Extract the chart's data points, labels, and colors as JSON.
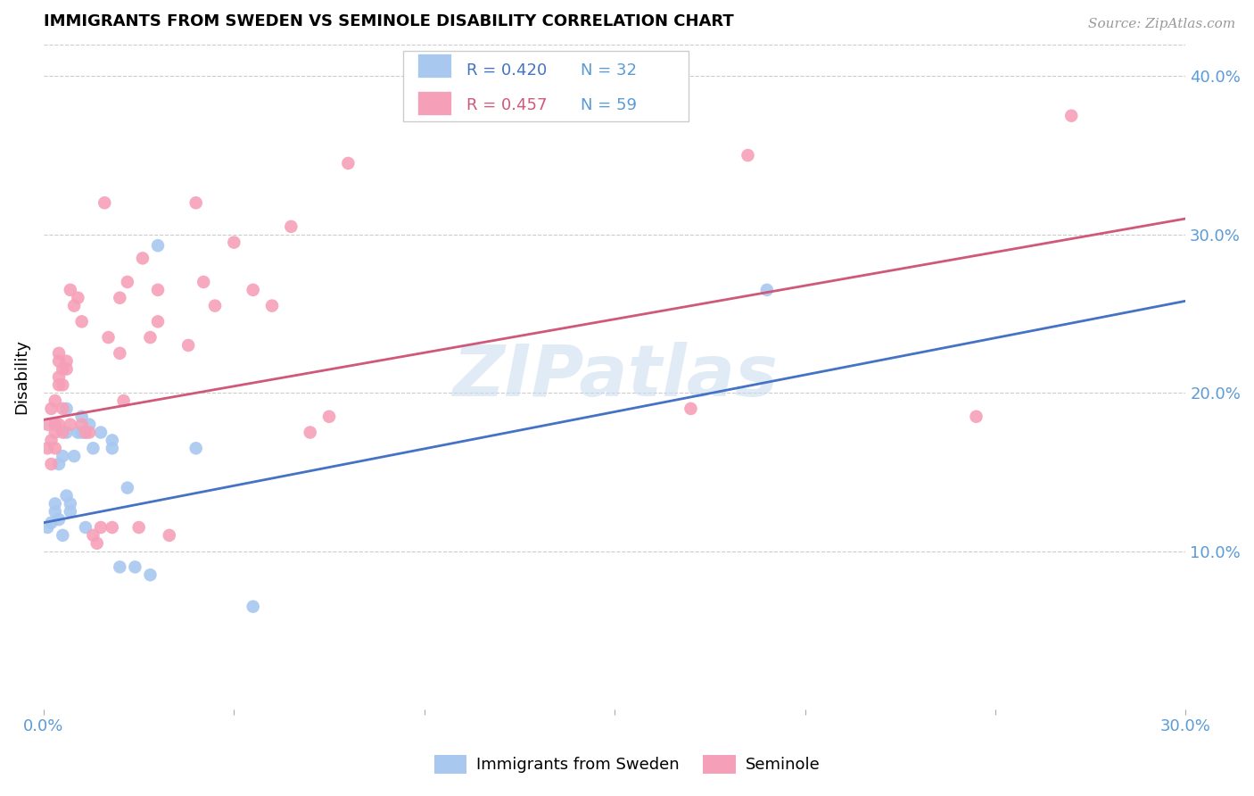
{
  "title": "IMMIGRANTS FROM SWEDEN VS SEMINOLE DISABILITY CORRELATION CHART",
  "source": "Source: ZipAtlas.com",
  "ylabel": "Disability",
  "xlim": [
    0.0,
    0.3
  ],
  "ylim": [
    0.0,
    0.42
  ],
  "ytick_labels": [
    "10.0%",
    "20.0%",
    "30.0%",
    "40.0%"
  ],
  "ytick_values": [
    0.1,
    0.2,
    0.3,
    0.4
  ],
  "xtick_values": [
    0.0,
    0.05,
    0.1,
    0.15,
    0.2,
    0.25,
    0.3
  ],
  "watermark": "ZIPatlas",
  "legend_blue_R": "R = 0.420",
  "legend_blue_N": "N = 32",
  "legend_pink_R": "R = 0.457",
  "legend_pink_N": "N = 59",
  "blue_color": "#A8C8F0",
  "pink_color": "#F5A0B8",
  "blue_line_color": "#4472C4",
  "pink_line_color": "#D05878",
  "tick_label_color": "#5B9BD5",
  "grid_color": "#CCCCCC",
  "blue_scatter": [
    [
      0.001,
      0.115
    ],
    [
      0.002,
      0.118
    ],
    [
      0.003,
      0.125
    ],
    [
      0.003,
      0.13
    ],
    [
      0.004,
      0.12
    ],
    [
      0.004,
      0.155
    ],
    [
      0.005,
      0.11
    ],
    [
      0.005,
      0.16
    ],
    [
      0.006,
      0.135
    ],
    [
      0.006,
      0.19
    ],
    [
      0.006,
      0.175
    ],
    [
      0.007,
      0.125
    ],
    [
      0.007,
      0.13
    ],
    [
      0.008,
      0.16
    ],
    [
      0.009,
      0.175
    ],
    [
      0.01,
      0.175
    ],
    [
      0.01,
      0.185
    ],
    [
      0.011,
      0.115
    ],
    [
      0.011,
      0.175
    ],
    [
      0.012,
      0.18
    ],
    [
      0.013,
      0.165
    ],
    [
      0.015,
      0.175
    ],
    [
      0.018,
      0.165
    ],
    [
      0.018,
      0.17
    ],
    [
      0.02,
      0.09
    ],
    [
      0.022,
      0.14
    ],
    [
      0.024,
      0.09
    ],
    [
      0.028,
      0.085
    ],
    [
      0.03,
      0.293
    ],
    [
      0.04,
      0.165
    ],
    [
      0.055,
      0.065
    ],
    [
      0.19,
      0.265
    ]
  ],
  "pink_scatter": [
    [
      0.001,
      0.165
    ],
    [
      0.001,
      0.18
    ],
    [
      0.002,
      0.17
    ],
    [
      0.002,
      0.155
    ],
    [
      0.002,
      0.19
    ],
    [
      0.003,
      0.175
    ],
    [
      0.003,
      0.18
    ],
    [
      0.003,
      0.195
    ],
    [
      0.003,
      0.165
    ],
    [
      0.004,
      0.205
    ],
    [
      0.004,
      0.21
    ],
    [
      0.004,
      0.18
    ],
    [
      0.004,
      0.22
    ],
    [
      0.004,
      0.225
    ],
    [
      0.005,
      0.175
    ],
    [
      0.005,
      0.19
    ],
    [
      0.005,
      0.205
    ],
    [
      0.005,
      0.215
    ],
    [
      0.006,
      0.215
    ],
    [
      0.006,
      0.22
    ],
    [
      0.007,
      0.18
    ],
    [
      0.007,
      0.265
    ],
    [
      0.008,
      0.255
    ],
    [
      0.009,
      0.26
    ],
    [
      0.01,
      0.18
    ],
    [
      0.01,
      0.245
    ],
    [
      0.011,
      0.175
    ],
    [
      0.012,
      0.175
    ],
    [
      0.013,
      0.11
    ],
    [
      0.014,
      0.105
    ],
    [
      0.015,
      0.115
    ],
    [
      0.016,
      0.32
    ],
    [
      0.017,
      0.235
    ],
    [
      0.018,
      0.115
    ],
    [
      0.02,
      0.225
    ],
    [
      0.02,
      0.26
    ],
    [
      0.021,
      0.195
    ],
    [
      0.022,
      0.27
    ],
    [
      0.025,
      0.115
    ],
    [
      0.026,
      0.285
    ],
    [
      0.028,
      0.235
    ],
    [
      0.03,
      0.245
    ],
    [
      0.03,
      0.265
    ],
    [
      0.033,
      0.11
    ],
    [
      0.038,
      0.23
    ],
    [
      0.04,
      0.32
    ],
    [
      0.042,
      0.27
    ],
    [
      0.045,
      0.255
    ],
    [
      0.05,
      0.295
    ],
    [
      0.055,
      0.265
    ],
    [
      0.06,
      0.255
    ],
    [
      0.065,
      0.305
    ],
    [
      0.07,
      0.175
    ],
    [
      0.075,
      0.185
    ],
    [
      0.08,
      0.345
    ],
    [
      0.17,
      0.19
    ],
    [
      0.185,
      0.35
    ],
    [
      0.245,
      0.185
    ],
    [
      0.27,
      0.375
    ]
  ],
  "blue_line_x": [
    0.0,
    0.3
  ],
  "blue_line_y": [
    0.118,
    0.258
  ],
  "pink_line_x": [
    0.0,
    0.3
  ],
  "pink_line_y": [
    0.183,
    0.31
  ]
}
